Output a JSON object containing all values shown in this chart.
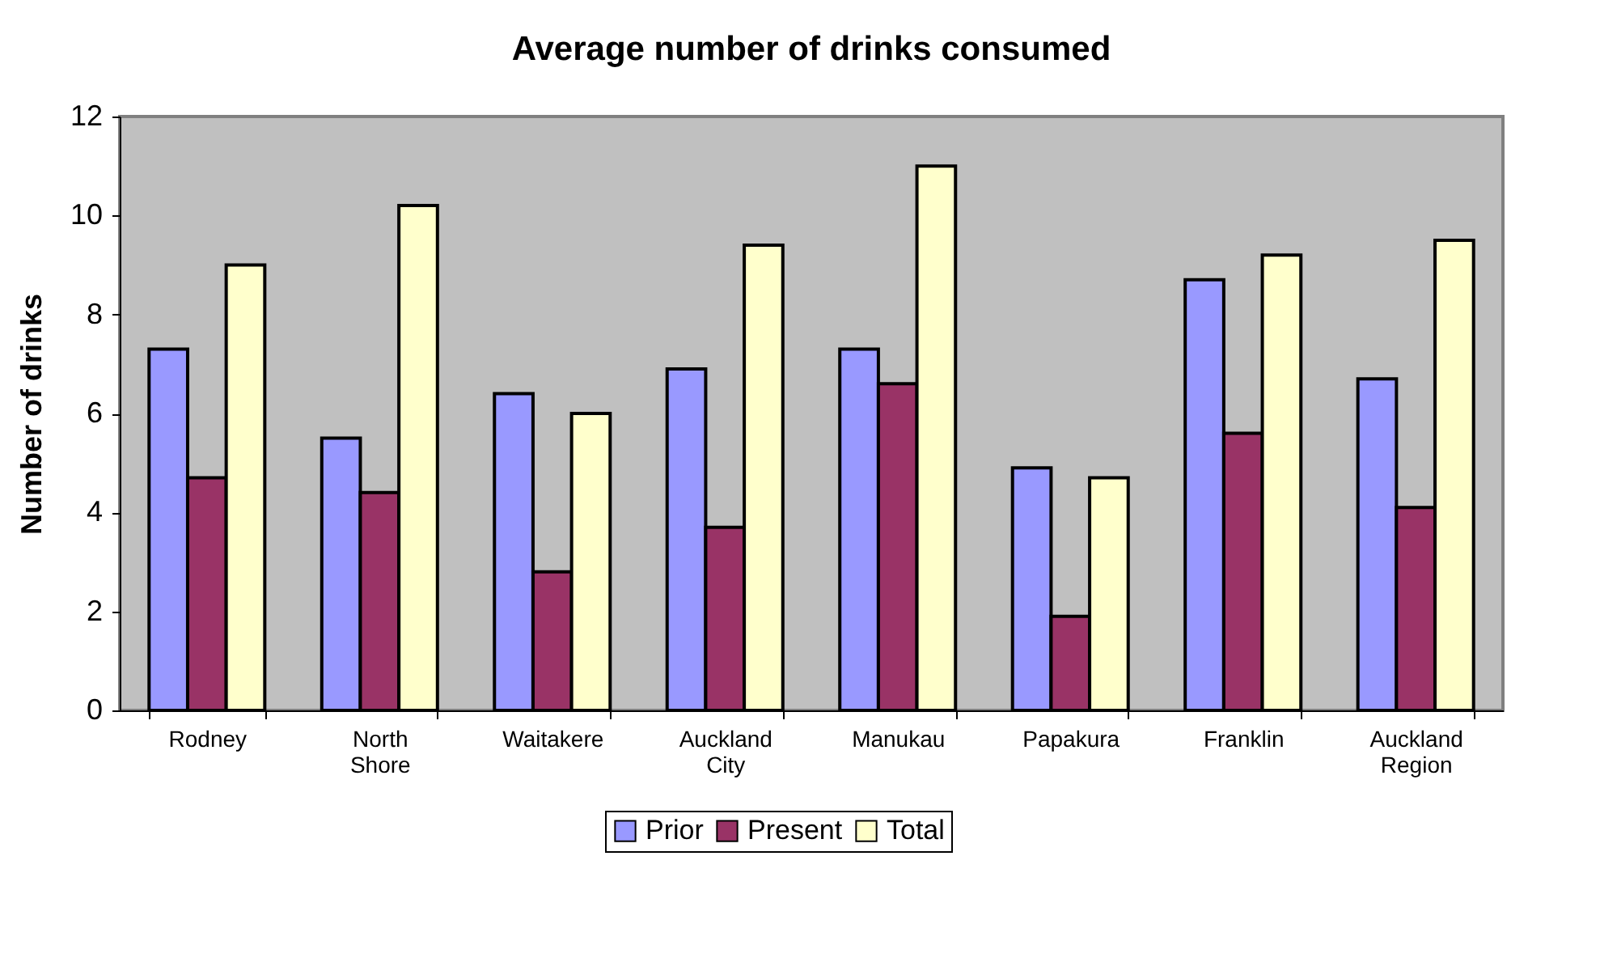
{
  "chart_data": {
    "type": "bar",
    "title": "Average number of drinks consumed",
    "ylabel": "Number of drinks",
    "categories": [
      "Rodney",
      "North Shore",
      "Waitakere",
      "Auckland City",
      "Manukau",
      "Papakura",
      "Franklin",
      "Auckland Region"
    ],
    "series": [
      {
        "name": "Prior",
        "color": "#9999ff",
        "values": [
          7.3,
          5.5,
          6.4,
          6.9,
          7.3,
          4.9,
          8.7,
          6.7
        ]
      },
      {
        "name": "Present",
        "color": "#993366",
        "values": [
          4.7,
          4.4,
          2.8,
          3.7,
          6.6,
          1.9,
          5.6,
          4.1
        ]
      },
      {
        "name": "Total",
        "color": "#ffffcc",
        "values": [
          9.0,
          10.2,
          6.0,
          9.4,
          11.0,
          4.7,
          9.2,
          9.5
        ]
      }
    ],
    "ylim": [
      0,
      12
    ],
    "yticks": [
      0,
      2,
      4,
      6,
      8,
      10,
      12
    ],
    "grid": false,
    "legend": "bottom"
  }
}
